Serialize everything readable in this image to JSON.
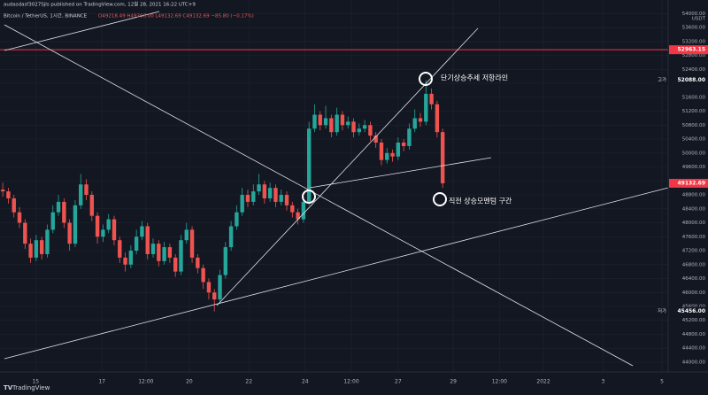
{
  "header": {
    "publisher": "audasdasf3027Sjls published on TradingView.com, 12월 28, 2021 16:22 UTC+9",
    "symbol": "Bitcoin / TetherUS, 1시간, BINANCE",
    "ohlc": "O49218.49 H49366.00 L49132.69 C49132.69 −85.80 (−0.17%)",
    "currency": "USDT",
    "brand": "TradingView"
  },
  "chart_data": {
    "type": "candlestick",
    "annotations": [
      "단기상승추세 저항라인",
      "직전 상승모멘텀 구간"
    ],
    "up_color": "#26a69a",
    "down_color": "#ef5350",
    "xlim": [
      0,
      120
    ],
    "xticks": [
      {
        "value": 6.4,
        "label": "15"
      },
      {
        "value": 18.3,
        "label": "17"
      },
      {
        "value": 26.2,
        "label": "12:00"
      },
      {
        "value": 34,
        "label": "20"
      },
      {
        "value": 44.7,
        "label": "22"
      },
      {
        "value": 54.8,
        "label": "24"
      },
      {
        "value": 63.1,
        "label": "12:00"
      },
      {
        "value": 71.5,
        "label": "27"
      },
      {
        "value": 81.4,
        "label": "29"
      },
      {
        "value": 89.7,
        "label": "12:00"
      },
      {
        "value": 97.6,
        "label": "2022"
      },
      {
        "value": 108.3,
        "label": "3"
      },
      {
        "value": 118.9,
        "label": "5"
      }
    ],
    "ylim": [
      43720,
      54390
    ],
    "yticks": [
      {
        "value": 44000,
        "label": "44000.00"
      },
      {
        "value": 44400,
        "label": "44400.00"
      },
      {
        "value": 44800,
        "label": "44800.00"
      },
      {
        "value": 45200,
        "label": "45200.00"
      },
      {
        "value": 45600,
        "label": "45600.00"
      },
      {
        "value": 46000,
        "label": "46000.00"
      },
      {
        "value": 46400,
        "label": "46400.00"
      },
      {
        "value": 46800,
        "label": "46800.00"
      },
      {
        "value": 47200,
        "label": "47200.00"
      },
      {
        "value": 47600,
        "label": "47600.00"
      },
      {
        "value": 48000,
        "label": "48000.00"
      },
      {
        "value": 48400,
        "label": "48400.00"
      },
      {
        "value": 48800,
        "label": "48800.00"
      },
      {
        "value": 49200,
        "label": "49200.00"
      },
      {
        "value": 49600,
        "label": "49600.00"
      },
      {
        "value": 50000,
        "label": "50000.00"
      },
      {
        "value": 50400,
        "label": "50400.00"
      },
      {
        "value": 50800,
        "label": "50800.00"
      },
      {
        "value": 51200,
        "label": "51200.00"
      },
      {
        "value": 51600,
        "label": "51600.00"
      },
      {
        "value": 52000,
        "label": "52000.00"
      },
      {
        "value": 52400,
        "label": "52400.00"
      },
      {
        "value": 52800,
        "label": "52800.00"
      },
      {
        "value": 53200,
        "label": "53200.00"
      },
      {
        "value": 53600,
        "label": "53600.00"
      },
      {
        "value": 54000,
        "label": "54000.00"
      }
    ],
    "grid": true,
    "markers": [
      {
        "value": 52963.15,
        "color": "#f23645",
        "line": true
      },
      {
        "value": 52088,
        "label": "52088.00",
        "caption": "고가",
        "color": "#d1d4dc"
      },
      {
        "value": 49132.69,
        "color": "#f23645"
      },
      {
        "value": 45456,
        "label": "45456.00",
        "caption": "저가",
        "color": "#d1d4dc"
      }
    ],
    "open": [
      48950,
      48900,
      48700,
      48300,
      48000,
      47400,
      47000,
      47500,
      47100,
      47800,
      48300,
      48600,
      48000,
      47400,
      48500,
      49100,
      48800,
      48200,
      47600,
      47800,
      48100,
      47500,
      47000,
      46800,
      47200,
      47600,
      47900,
      47100,
      47400,
      46900,
      47300,
      47000,
      46600,
      47500,
      47800,
      47000,
      46700,
      46300,
      46000,
      45800,
      46500,
      47300,
      47900,
      48300,
      48800,
      48600,
      48900,
      49100,
      48700,
      49000,
      48600,
      48800,
      48500,
      48300,
      48100,
      48600,
      50700,
      51100,
      50800,
      51000,
      50600,
      51100,
      50800,
      50900,
      50600,
      50700,
      50800,
      50500,
      50300,
      49800,
      50000,
      49900,
      50300,
      50200,
      50700,
      51000,
      50900,
      51700,
      51400,
      50600
    ],
    "high": [
      49150,
      49000,
      48800,
      48450,
      48100,
      47550,
      47650,
      47600,
      47950,
      48500,
      48800,
      48700,
      48100,
      48650,
      49400,
      49250,
      48900,
      48300,
      47950,
      48250,
      48200,
      47600,
      47150,
      47350,
      47800,
      48050,
      48000,
      47550,
      47500,
      47450,
      47400,
      47100,
      47650,
      48000,
      47900,
      47100,
      46800,
      46400,
      46100,
      46650,
      47450,
      48050,
      48500,
      49000,
      48950,
      49100,
      49400,
      49200,
      49150,
      49100,
      48950,
      48900,
      48600,
      48400,
      48750,
      50900,
      51400,
      51200,
      51350,
      51100,
      51300,
      51200,
      51050,
      51000,
      50850,
      50950,
      50900,
      50600,
      50400,
      50150,
      50100,
      50450,
      50400,
      50850,
      51250,
      51150,
      52088,
      51850,
      51500,
      50700
    ],
    "low": [
      48750,
      48550,
      48150,
      47850,
      47250,
      46850,
      46900,
      46950,
      47000,
      47700,
      48200,
      47850,
      47200,
      47300,
      48400,
      48650,
      48050,
      47400,
      47450,
      47700,
      47350,
      46850,
      46600,
      46700,
      47100,
      47500,
      46950,
      47000,
      46750,
      46800,
      46850,
      46450,
      46500,
      47400,
      46850,
      46550,
      46100,
      45800,
      45456,
      45700,
      46400,
      47200,
      47800,
      48200,
      48450,
      48500,
      48800,
      48550,
      48600,
      48450,
      48500,
      48350,
      48150,
      47950,
      48000,
      48500,
      50600,
      50650,
      50700,
      50450,
      50500,
      50650,
      50700,
      50450,
      50500,
      50600,
      50350,
      50150,
      49650,
      49700,
      49750,
      49800,
      50050,
      50100,
      50600,
      50750,
      50800,
      51250,
      50450,
      49000
    ],
    "close": [
      48900,
      48700,
      48300,
      48000,
      47400,
      47000,
      47500,
      47100,
      47800,
      48300,
      48600,
      48000,
      47400,
      48500,
      49100,
      48800,
      48200,
      47600,
      47800,
      48100,
      47500,
      47000,
      46800,
      47200,
      47600,
      47900,
      47100,
      47400,
      46900,
      47300,
      47000,
      46600,
      47500,
      47800,
      47000,
      46700,
      46300,
      46000,
      45800,
      46500,
      47300,
      47900,
      48300,
      48800,
      48600,
      48900,
      49100,
      48700,
      49000,
      48600,
      48800,
      48500,
      48300,
      48100,
      48600,
      50700,
      51100,
      50800,
      51000,
      50600,
      51100,
      50800,
      50900,
      50600,
      50700,
      50800,
      50500,
      50300,
      49800,
      50000,
      49900,
      50300,
      50200,
      50700,
      51000,
      50900,
      51700,
      51400,
      50600,
      49132.69
    ]
  }
}
